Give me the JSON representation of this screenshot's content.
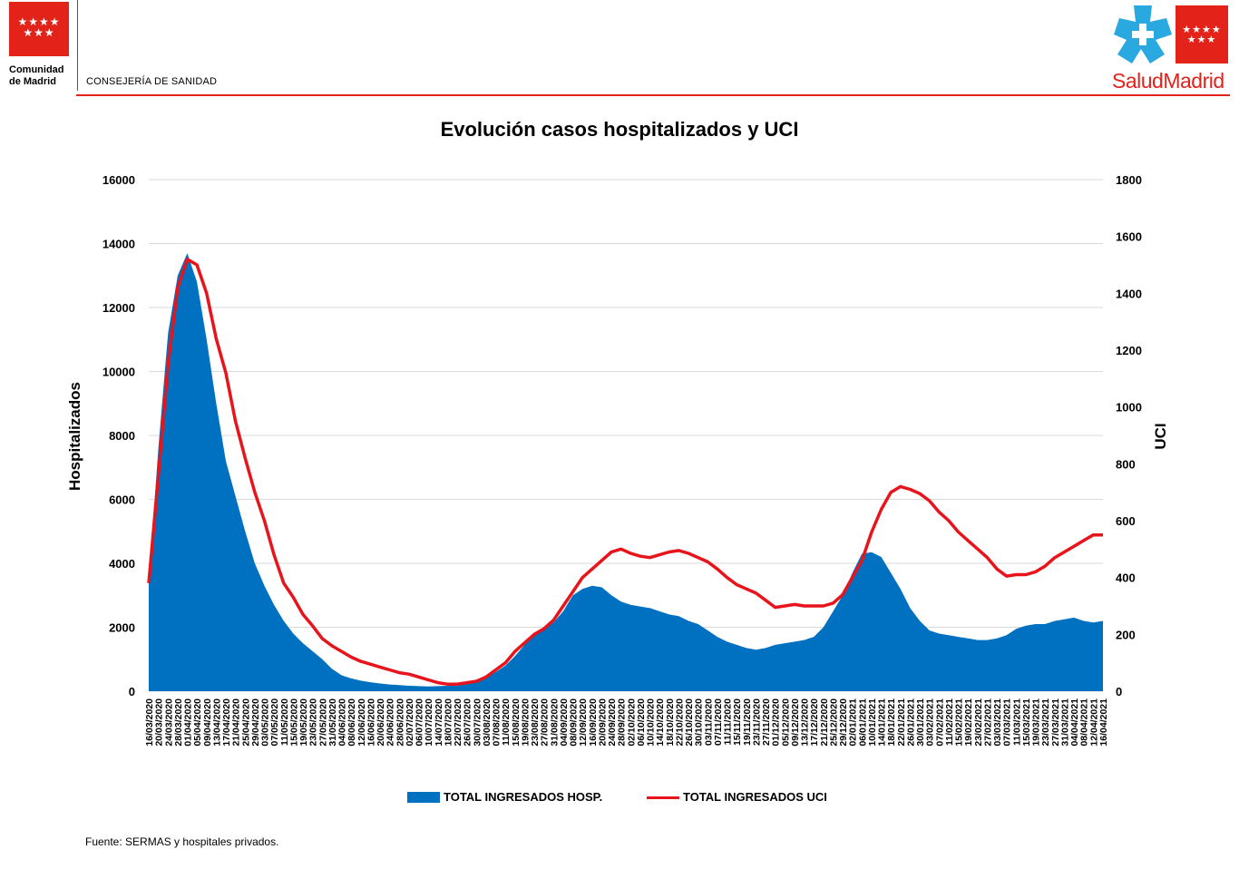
{
  "header": {
    "left_logo_name_line1": "Comunidad",
    "left_logo_name_line2": "de Madrid",
    "department": "CONSEJERÍA DE SANIDAD",
    "right_logo_text": "SaludMadrid"
  },
  "colors": {
    "brand_red": "#e32219",
    "hosp_area": "#0070c0",
    "uci_line": "#e8141c",
    "gridline": "#d9d9d9"
  },
  "chart_data": {
    "type": "area",
    "title": "Evolución casos hospitalizados y UCI",
    "ylabel": "Hospitalizados",
    "y2label": "UCI",
    "ylim": [
      0,
      16000
    ],
    "y2lim": [
      0,
      1800
    ],
    "yticks": [
      0,
      2000,
      4000,
      6000,
      8000,
      10000,
      12000,
      14000,
      16000
    ],
    "y2ticks": [
      0,
      200,
      400,
      600,
      800,
      1000,
      1200,
      1400,
      1600,
      1800
    ],
    "grid": true,
    "legend_position": "bottom",
    "x_tick_labels": [
      "16/03/2020",
      "20/03/2020",
      "24/03/2020",
      "28/03/2020",
      "01/04/2020",
      "05/04/2020",
      "09/04/2020",
      "13/04/2020",
      "17/04/2020",
      "21/04/2020",
      "25/04/2020",
      "29/04/2020",
      "03/05/2020",
      "07/05/2020",
      "11/05/2020",
      "15/05/2020",
      "19/05/2020",
      "23/05/2020",
      "27/05/2020",
      "31/05/2020",
      "04/06/2020",
      "08/06/2020",
      "12/06/2020",
      "16/06/2020",
      "20/06/2020",
      "24/06/2020",
      "28/06/2020",
      "02/07/2020",
      "06/07/2020",
      "10/07/2020",
      "14/07/2020",
      "18/07/2020",
      "22/07/2020",
      "26/07/2020",
      "30/07/2020",
      "03/08/2020",
      "07/08/2020",
      "11/08/2020",
      "15/08/2020",
      "19/08/2020",
      "23/08/2020",
      "27/08/2020",
      "31/08/2020",
      "04/09/2020",
      "08/09/2020",
      "12/09/2020",
      "16/09/2020",
      "20/09/2020",
      "24/09/2020",
      "28/09/2020",
      "02/10/2020",
      "06/10/2020",
      "10/10/2020",
      "14/10/2020",
      "18/10/2020",
      "22/10/2020",
      "26/10/2020",
      "30/10/2020",
      "03/11/2020",
      "07/11/2020",
      "11/11/2020",
      "15/11/2020",
      "19/11/2020",
      "23/11/2020",
      "27/11/2020",
      "01/12/2020",
      "05/12/2020",
      "09/12/2020",
      "13/12/2020",
      "17/12/2020",
      "21/12/2020",
      "25/12/2020",
      "29/12/2020",
      "02/01/2021",
      "06/01/2021",
      "10/01/2021",
      "14/01/2021",
      "18/01/2021",
      "22/01/2021",
      "26/01/2021",
      "30/01/2021",
      "03/02/2021",
      "07/02/2021",
      "11/02/2021",
      "15/02/2021",
      "19/02/2021",
      "23/02/2021",
      "27/02/2021",
      "03/03/2021",
      "07/03/2021",
      "11/03/2021",
      "15/03/2021",
      "19/03/2021",
      "23/03/2021",
      "27/03/2021",
      "31/03/2021",
      "04/04/2021",
      "08/04/2021",
      "12/04/2021",
      "16/04/2021"
    ],
    "series": [
      {
        "name": "TOTAL INGRESADOS HOSP.",
        "axis": "left",
        "kind": "area",
        "x": [
          "16/03/2020",
          "20/03/2020",
          "24/03/2020",
          "28/03/2020",
          "01/04/2020",
          "05/04/2020",
          "09/04/2020",
          "13/04/2020",
          "17/04/2020",
          "21/04/2020",
          "25/04/2020",
          "29/04/2020",
          "03/05/2020",
          "07/05/2020",
          "11/05/2020",
          "15/05/2020",
          "19/05/2020",
          "23/05/2020",
          "27/05/2020",
          "31/05/2020",
          "04/06/2020",
          "08/06/2020",
          "12/06/2020",
          "16/06/2020",
          "20/06/2020",
          "24/06/2020",
          "28/06/2020",
          "02/07/2020",
          "06/07/2020",
          "10/07/2020",
          "14/07/2020",
          "18/07/2020",
          "22/07/2020",
          "26/07/2020",
          "30/07/2020",
          "03/08/2020",
          "07/08/2020",
          "11/08/2020",
          "15/08/2020",
          "19/08/2020",
          "23/08/2020",
          "27/08/2020",
          "31/08/2020",
          "04/09/2020",
          "08/09/2020",
          "12/09/2020",
          "16/09/2020",
          "20/09/2020",
          "24/09/2020",
          "28/09/2020",
          "02/10/2020",
          "06/10/2020",
          "10/10/2020",
          "14/10/2020",
          "18/10/2020",
          "22/10/2020",
          "26/10/2020",
          "30/10/2020",
          "03/11/2020",
          "07/11/2020",
          "11/11/2020",
          "15/11/2020",
          "19/11/2020",
          "23/11/2020",
          "27/11/2020",
          "01/12/2020",
          "05/12/2020",
          "09/12/2020",
          "13/12/2020",
          "17/12/2020",
          "21/12/2020",
          "25/12/2020",
          "29/12/2020",
          "02/01/2021",
          "06/01/2021",
          "10/01/2021",
          "14/01/2021",
          "18/01/2021",
          "22/01/2021",
          "26/01/2021",
          "30/01/2021",
          "03/02/2021",
          "07/02/2021",
          "11/02/2021",
          "15/02/2021",
          "19/02/2021",
          "23/02/2021",
          "27/02/2021",
          "03/03/2021",
          "07/03/2021",
          "11/03/2021",
          "15/03/2021",
          "19/03/2021",
          "23/03/2021",
          "27/03/2021",
          "31/03/2021",
          "04/04/2021",
          "08/04/2021",
          "12/04/2021",
          "16/04/2021"
        ],
        "values": [
          3400,
          7600,
          11200,
          13000,
          13700,
          12800,
          11000,
          9000,
          7200,
          6100,
          5000,
          4000,
          3300,
          2700,
          2200,
          1800,
          1500,
          1250,
          1000,
          700,
          500,
          400,
          330,
          280,
          240,
          210,
          190,
          170,
          160,
          150,
          160,
          170,
          210,
          260,
          330,
          430,
          600,
          800,
          1100,
          1450,
          1800,
          2000,
          2150,
          2500,
          3000,
          3200,
          3300,
          3250,
          3000,
          2800,
          2700,
          2650,
          2600,
          2500,
          2400,
          2350,
          2200,
          2100,
          1900,
          1700,
          1550,
          1450,
          1350,
          1300,
          1350,
          1450,
          1500,
          1550,
          1600,
          1700,
          2000,
          2500,
          3000,
          3700,
          4300,
          4350,
          4200,
          3700,
          3200,
          2600,
          2200,
          1900,
          1800,
          1750,
          1700,
          1650,
          1600,
          1600,
          1650,
          1750,
          1950,
          2050,
          2100,
          2100,
          2200,
          2250,
          2300,
          2200,
          2150,
          2200
        ]
      },
      {
        "name": "TOTAL INGRESADOS UCI",
        "axis": "right",
        "kind": "line",
        "x": [
          "16/03/2020",
          "20/03/2020",
          "24/03/2020",
          "28/03/2020",
          "01/04/2020",
          "05/04/2020",
          "09/04/2020",
          "13/04/2020",
          "17/04/2020",
          "21/04/2020",
          "25/04/2020",
          "29/04/2020",
          "03/05/2020",
          "07/05/2020",
          "11/05/2020",
          "15/05/2020",
          "19/05/2020",
          "23/05/2020",
          "27/05/2020",
          "31/05/2020",
          "04/06/2020",
          "08/06/2020",
          "12/06/2020",
          "16/06/2020",
          "20/06/2020",
          "24/06/2020",
          "28/06/2020",
          "02/07/2020",
          "06/07/2020",
          "10/07/2020",
          "14/07/2020",
          "18/07/2020",
          "22/07/2020",
          "26/07/2020",
          "30/07/2020",
          "03/08/2020",
          "07/08/2020",
          "11/08/2020",
          "15/08/2020",
          "19/08/2020",
          "23/08/2020",
          "27/08/2020",
          "31/08/2020",
          "04/09/2020",
          "08/09/2020",
          "12/09/2020",
          "16/09/2020",
          "20/09/2020",
          "24/09/2020",
          "28/09/2020",
          "02/10/2020",
          "06/10/2020",
          "10/10/2020",
          "14/10/2020",
          "18/10/2020",
          "22/10/2020",
          "26/10/2020",
          "30/10/2020",
          "03/11/2020",
          "07/11/2020",
          "11/11/2020",
          "15/11/2020",
          "19/11/2020",
          "23/11/2020",
          "27/11/2020",
          "01/12/2020",
          "05/12/2020",
          "09/12/2020",
          "13/12/2020",
          "17/12/2020",
          "21/12/2020",
          "25/12/2020",
          "29/12/2020",
          "02/01/2021",
          "06/01/2021",
          "10/01/2021",
          "14/01/2021",
          "18/01/2021",
          "22/01/2021",
          "26/01/2021",
          "30/01/2021",
          "03/02/2021",
          "07/02/2021",
          "11/02/2021",
          "15/02/2021",
          "19/02/2021",
          "23/02/2021",
          "27/02/2021",
          "03/03/2021",
          "07/03/2021",
          "11/03/2021",
          "15/03/2021",
          "19/03/2021",
          "23/03/2021",
          "27/03/2021",
          "31/03/2021",
          "04/04/2021",
          "08/04/2021",
          "12/04/2021",
          "16/04/2021"
        ],
        "values": [
          380,
          760,
          1150,
          1420,
          1520,
          1500,
          1400,
          1240,
          1120,
          950,
          820,
          700,
          600,
          480,
          380,
          330,
          270,
          230,
          185,
          160,
          140,
          120,
          105,
          95,
          85,
          75,
          65,
          60,
          50,
          40,
          30,
          25,
          25,
          30,
          35,
          50,
          75,
          100,
          140,
          170,
          200,
          220,
          250,
          300,
          350,
          400,
          430,
          460,
          490,
          500,
          485,
          475,
          470,
          480,
          490,
          495,
          485,
          470,
          455,
          430,
          400,
          375,
          360,
          345,
          320,
          295,
          300,
          305,
          300,
          300,
          300,
          310,
          340,
          400,
          460,
          560,
          640,
          700,
          720,
          710,
          695,
          670,
          630,
          600,
          560,
          530,
          500,
          470,
          430,
          405,
          410,
          410,
          420,
          440,
          470,
          490,
          510,
          530,
          550,
          550
        ]
      }
    ]
  },
  "legend": {
    "hosp_label": "TOTAL INGRESADOS HOSP.",
    "uci_label": "TOTAL INGRESADOS UCI"
  },
  "footer": {
    "source": "Fuente: SERMAS y hospitales privados."
  }
}
